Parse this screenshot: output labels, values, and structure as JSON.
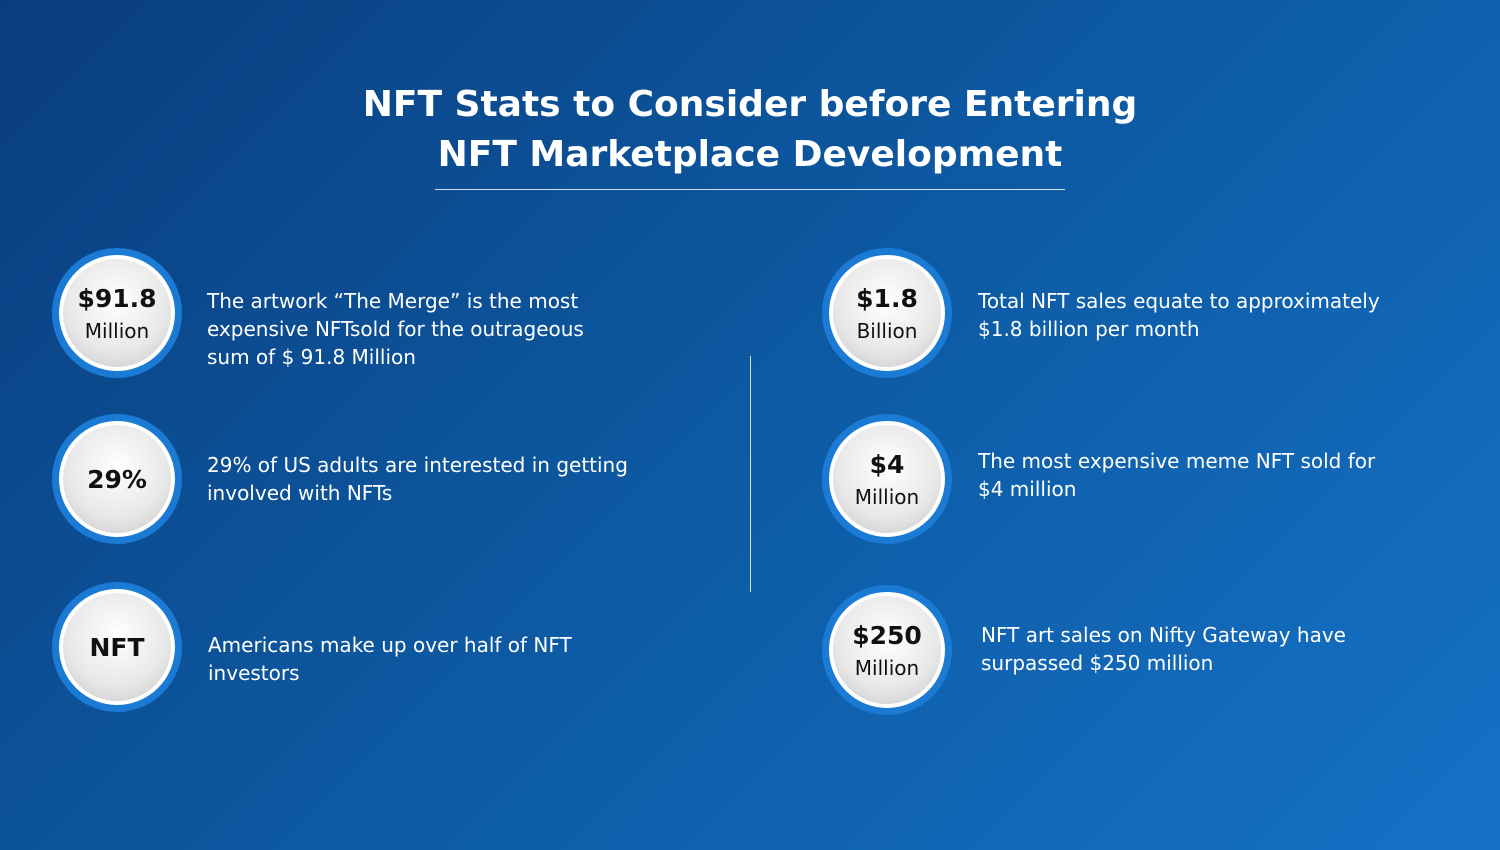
{
  "title": [
    "NFT Stats to Consider before Entering",
    "NFT Marketplace Development"
  ],
  "stats": [
    {
      "big": "$91.8",
      "small": "Million",
      "text": [
        "The artwork “The Merge” is the most",
        "expensive NFTsold for the outrageous",
        "sum of $ 91.8 Million"
      ]
    },
    {
      "big": "29%",
      "small": null,
      "text": [
        "29% of US adults are interested in getting",
        "involved with NFTs"
      ]
    },
    {
      "big": "NFT",
      "small": null,
      "text": [
        "Americans make up over half of NFT",
        "investors"
      ]
    },
    {
      "big": "$1.8",
      "small": "Billion",
      "text": [
        "Total NFT sales equate to approximately",
        "$1.8 billion per month"
      ]
    },
    {
      "big": "$4",
      "small": "Million",
      "text": [
        "The most expensive meme NFT sold for",
        "$4 million"
      ]
    },
    {
      "big": "$250",
      "small": "Million",
      "text": [
        "NFT art sales on Nifty Gateway have",
        "surpassed $250 million"
      ]
    }
  ]
}
